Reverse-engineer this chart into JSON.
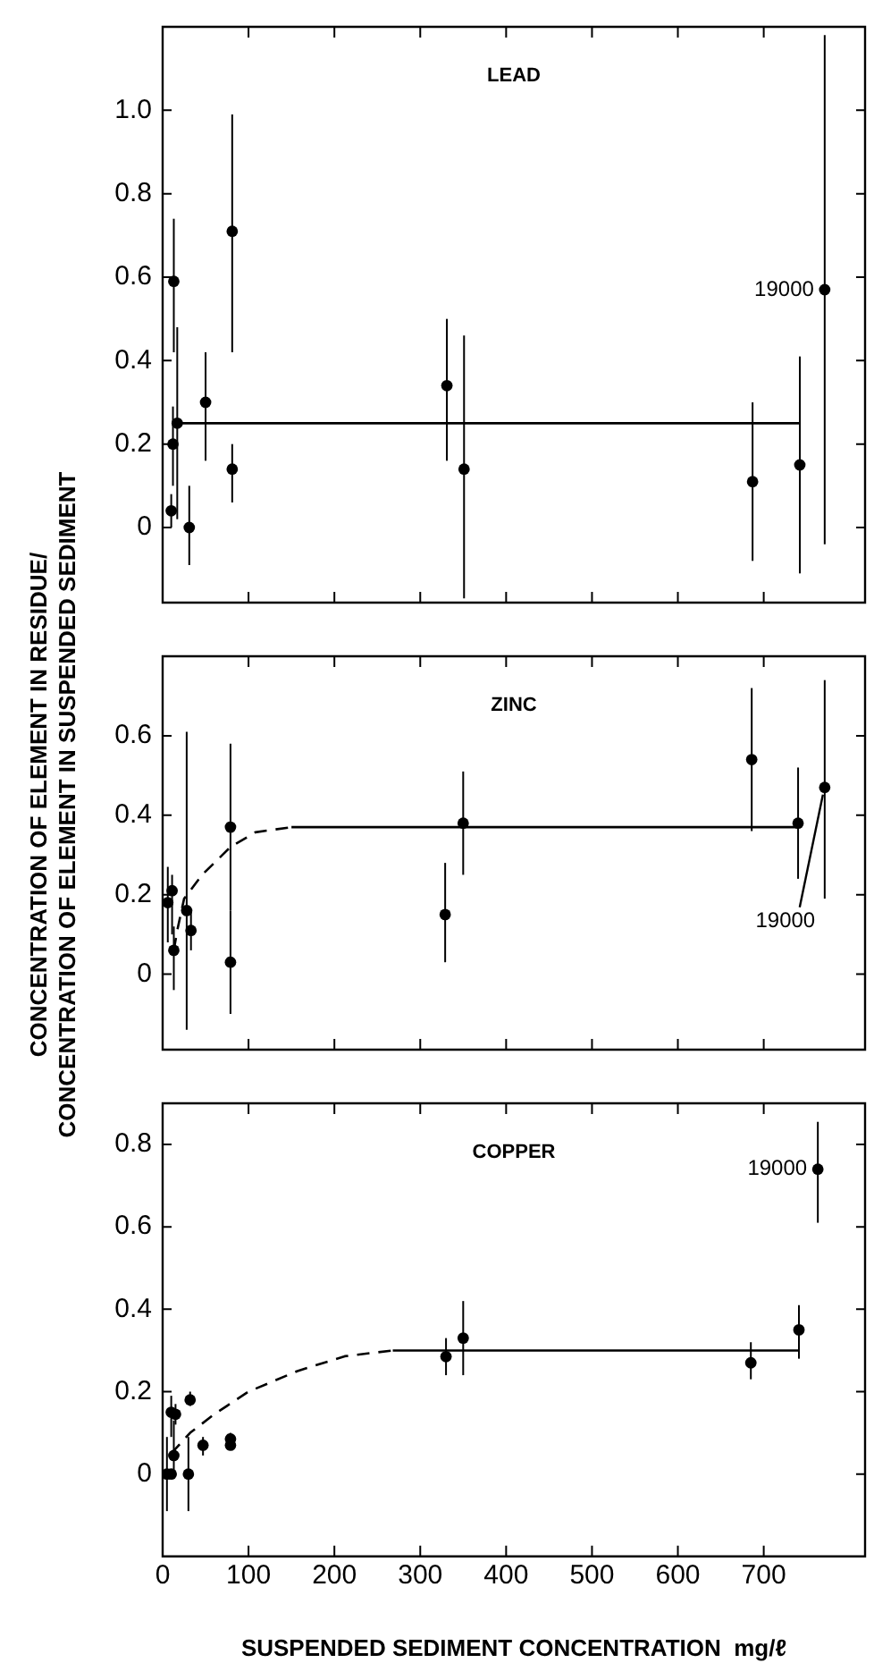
{
  "chart_data": [
    {
      "type": "scatter",
      "title": "LEAD",
      "xlim": [
        0,
        818
      ],
      "xticks": [
        0,
        100,
        200,
        300,
        400,
        500,
        600,
        700
      ],
      "ylim": [
        -0.18,
        1.2
      ],
      "yticks": [
        0,
        0.2,
        0.4,
        0.6,
        0.8,
        {
          "value": 1,
          "label": "1.0"
        }
      ],
      "tick_labels": "y",
      "grid": false,
      "marker": "circle",
      "series": [
        {
          "color": "#000000",
          "x": [
            13,
            10,
            12,
            17,
            31,
            50,
            81,
            81,
            331,
            351,
            687,
            742,
            771
          ],
          "values": [
            0.59,
            0.04,
            0.2,
            0.25,
            0.0,
            0.3,
            0.71,
            0.14,
            0.34,
            0.14,
            0.11,
            0.15,
            0.57
          ],
          "errors": [
            [
              0.42,
              0.74
            ],
            [
              0.0,
              0.08
            ],
            [
              0.1,
              0.29
            ],
            [
              0.02,
              0.48
            ],
            [
              -0.09,
              0.1
            ],
            [
              0.16,
              0.42
            ],
            [
              0.42,
              0.99
            ],
            [
              0.06,
              0.2
            ],
            [
              0.16,
              0.5
            ],
            [
              -0.17,
              0.46
            ],
            [
              -0.08,
              0.3
            ],
            [
              -0.11,
              0.41
            ],
            [
              -0.04,
              1.18
            ]
          ]
        },
        {
          "type": "line",
          "marker": "none",
          "line_style": "solid",
          "color": "#000000",
          "x": [
            12,
            742
          ],
          "values": [
            0.25,
            0.25
          ]
        }
      ],
      "annotations": [
        "19000"
      ]
    },
    {
      "type": "scatter",
      "title": "ZINC",
      "ylabel": "CONCENTRATION OF ELEMENT IN RESIDUE/\nCONCENTRATION OF ELEMENT IN SUSPENDED SEDIMENT",
      "xlim": [
        0,
        818
      ],
      "xticks": [
        0,
        100,
        200,
        300,
        400,
        500,
        600,
        700
      ],
      "ylim": [
        -0.19,
        0.8
      ],
      "yticks": [
        0,
        0.2,
        0.4,
        0.6
      ],
      "tick_labels": "y",
      "grid": false,
      "marker": "circle",
      "series": [
        {
          "color": "#000000",
          "x": [
            6,
            11,
            13,
            28,
            33,
            79,
            79,
            329,
            350,
            686,
            740,
            771
          ],
          "values": [
            0.18,
            0.21,
            0.06,
            0.16,
            0.11,
            0.37,
            0.03,
            0.15,
            0.38,
            0.54,
            0.38,
            0.47
          ],
          "errors": [
            [
              0.08,
              0.27
            ],
            [
              0.1,
              0.25
            ],
            [
              -0.04,
              0.12
            ],
            [
              -0.14,
              0.61
            ],
            [
              0.06,
              0.16
            ],
            [
              0.16,
              0.58
            ],
            [
              -0.1,
              0.16
            ],
            [
              0.03,
              0.28
            ],
            [
              0.25,
              0.51
            ],
            [
              0.36,
              0.72
            ],
            [
              0.24,
              0.52
            ],
            [
              0.19,
              0.74
            ]
          ]
        },
        {
          "type": "line",
          "marker": "none",
          "line_style": "dashed",
          "color": "#000000",
          "x": [
            13,
            17,
            25,
            46,
            79,
            108,
            150
          ],
          "values": [
            0.06,
            0.11,
            0.19,
            0.25,
            0.32,
            0.357,
            0.37
          ]
        },
        {
          "type": "line",
          "marker": "none",
          "line_style": "solid",
          "color": "#000000",
          "x": [
            150,
            740
          ],
          "values": [
            0.37,
            0.37
          ]
        }
      ],
      "annotations": [
        {
          "text": "19000",
          "x": 771,
          "y": 0.47
        }
      ]
    },
    {
      "type": "scatter",
      "title": "COPPER",
      "xlabel": "SUSPENDED SEDIMENT CONCENTRATION  mg/ℓ",
      "xlim": [
        0,
        818
      ],
      "xticks": [
        0,
        100,
        200,
        300,
        400,
        500,
        600,
        700
      ],
      "ylim": [
        -0.2,
        0.9
      ],
      "yticks": [
        0,
        0.2,
        0.4,
        0.6,
        0.8
      ],
      "grid": false,
      "marker": "circle",
      "series": [
        {
          "color": "#000000",
          "x": [
            5,
            10,
            10,
            15,
            13,
            30,
            32,
            47,
            79,
            79,
            330,
            350,
            685,
            741,
            763
          ],
          "values": [
            0.0,
            0.0,
            0.15,
            0.145,
            0.045,
            0.0,
            0.18,
            0.07,
            0.085,
            0.07,
            0.285,
            0.33,
            0.27,
            0.35,
            0.74
          ],
          "errors": [
            [
              -0.09,
              0.09
            ],
            null,
            [
              0.09,
              0.19
            ],
            [
              0.12,
              0.17
            ],
            [
              -0.01,
              0.13
            ],
            [
              -0.09,
              0.09
            ],
            [
              0.165,
              0.2
            ],
            [
              0.045,
              0.09
            ],
            [
              0.065,
              0.1
            ],
            null,
            [
              0.24,
              0.33
            ],
            [
              0.24,
              0.42
            ],
            [
              0.23,
              0.32
            ],
            [
              0.28,
              0.41
            ],
            [
              0.61,
              0.855
            ]
          ]
        },
        {
          "type": "line",
          "marker": "none",
          "line_style": "dashed",
          "color": "#000000",
          "x": [
            10,
            32,
            60,
            100,
            157,
            212,
            268
          ],
          "values": [
            0.05,
            0.1,
            0.145,
            0.2,
            0.25,
            0.286,
            0.3
          ]
        },
        {
          "type": "line",
          "marker": "none",
          "line_style": "solid",
          "color": "#000000",
          "x": [
            268,
            741
          ],
          "values": [
            0.3,
            0.3
          ]
        }
      ],
      "annotations": [
        "19000"
      ]
    }
  ]
}
